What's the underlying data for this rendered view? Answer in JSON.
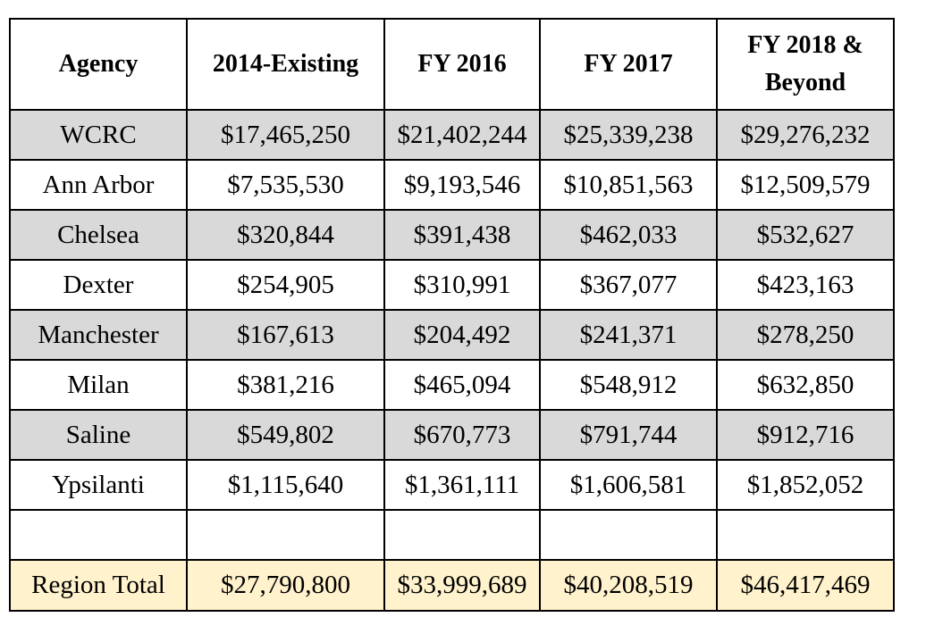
{
  "chart_data": {
    "type": "table",
    "columns": [
      "Agency",
      "2014-Existing",
      "FY 2016",
      "FY 2017",
      "FY 2018 & Beyond"
    ],
    "rows": [
      [
        "WCRC",
        "$17,465,250",
        "$21,402,244",
        "$25,339,238",
        "$29,276,232"
      ],
      [
        "Ann Arbor",
        "$7,535,530",
        "$9,193,546",
        "$10,851,563",
        "$12,509,579"
      ],
      [
        "Chelsea",
        "$320,844",
        "$391,438",
        "$462,033",
        "$532,627"
      ],
      [
        "Dexter",
        "$254,905",
        "$310,991",
        "$367,077",
        "$423,163"
      ],
      [
        "Manchester",
        "$167,613",
        "$204,492",
        "$241,371",
        "$278,250"
      ],
      [
        "Milan",
        "$381,216",
        "$465,094",
        "$548,912",
        "$632,850"
      ],
      [
        "Saline",
        "$549,802",
        "$670,773",
        "$791,744",
        "$912,716"
      ],
      [
        "Ypsilanti",
        "$1,115,640",
        "$1,361,111",
        "$1,606,581",
        "$1,852,052"
      ],
      [
        "",
        "",
        "",
        "",
        ""
      ]
    ],
    "total": [
      "Region Total",
      "$27,790,800",
      "$33,999,689",
      "$40,208,519",
      "$46,417,469"
    ],
    "colors": {
      "shaded_row": "#d9d9d9",
      "total_row": "#fff2cc",
      "border": "#000000"
    }
  }
}
